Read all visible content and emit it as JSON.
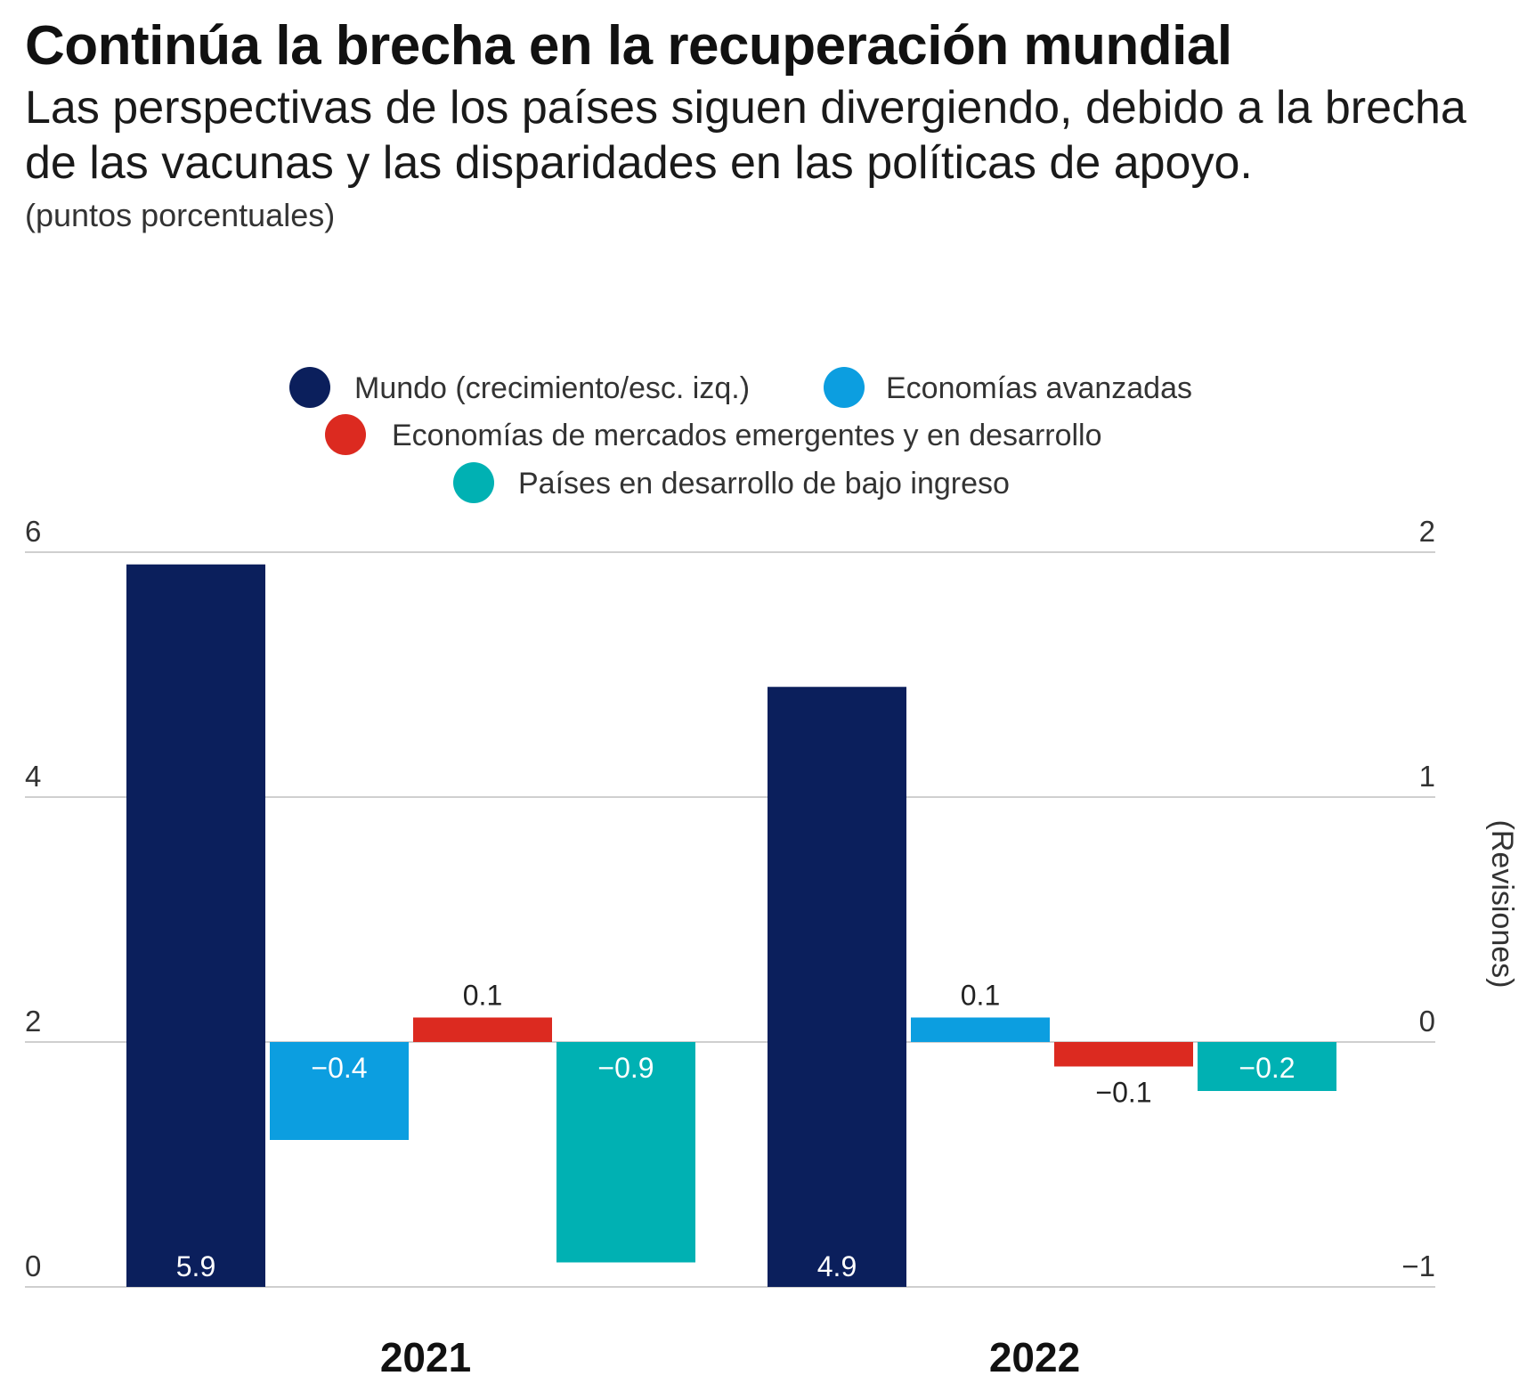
{
  "header": {
    "title": "Continúa la brecha en la recuperación mundial",
    "subtitle": "Las perspectivas de los países siguen divergiendo, debido a la brecha de las vacunas y las disparidades en las políticas de apoyo.",
    "unit": "(puntos porcentuales)"
  },
  "colors": {
    "mundo": "#0b1f5c",
    "avanzadas": "#0c9ee0",
    "emergentes": "#dc2a20",
    "bajo_ingreso": "#00b1b3",
    "grid": "#cfcfcf"
  },
  "chart_data": {
    "type": "bar",
    "title": "Continúa la brecha en la recuperación mundial",
    "categories": [
      "2021",
      "2022"
    ],
    "y_left": {
      "label": "",
      "ylim": [
        0,
        6
      ],
      "ticks": [
        0,
        2,
        4,
        6
      ]
    },
    "y_right": {
      "label": "(Revisiones)",
      "ylim": [
        -1,
        2
      ],
      "ticks": [
        -1,
        0,
        1,
        2
      ]
    },
    "grid": true,
    "legend_placement": "top-center",
    "series": [
      {
        "name": "Mundo (crecimiento/esc. izq.)",
        "axis": "left",
        "color": "#0b1f5c",
        "values": [
          5.9,
          4.9
        ],
        "labels": [
          "5.9",
          "4.9"
        ]
      },
      {
        "name": "Economías avanzadas",
        "axis": "right",
        "color": "#0c9ee0",
        "values": [
          -0.4,
          0.1
        ],
        "labels": [
          "−0.4",
          "0.1"
        ]
      },
      {
        "name": "Economías de mercados emergentes y en desarrollo",
        "axis": "right",
        "color": "#dc2a20",
        "values": [
          0.1,
          -0.1
        ],
        "labels": [
          "0.1",
          "−0.1"
        ]
      },
      {
        "name": "Países en desarrollo de bajo ingreso",
        "axis": "right",
        "color": "#00b1b3",
        "values": [
          -0.9,
          -0.2
        ],
        "labels": [
          "−0.9",
          "−0.2"
        ]
      }
    ]
  }
}
